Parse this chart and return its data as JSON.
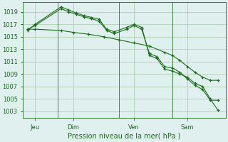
{
  "bg_color": "#dff0ee",
  "grid_color": "#a8c8a8",
  "line_color": "#1a6b1a",
  "title": "Pression niveau de la mer( hPa )",
  "ylim": [
    1002,
    1020.5
  ],
  "yticks": [
    1003,
    1005,
    1007,
    1009,
    1011,
    1013,
    1015,
    1017,
    1019
  ],
  "xlabel_days": [
    "Jeu",
    "Dim",
    "Ven",
    "Sam"
  ],
  "xlabel_xpos": [
    0.5,
    3.0,
    7.0,
    10.5
  ],
  "vline_pos": [
    2.0,
    6.0,
    9.5
  ],
  "series1_x": [
    0.0,
    0.5,
    2.2,
    2.7,
    3.2,
    3.7,
    4.2,
    4.7,
    5.2,
    5.7,
    6.5,
    7.0,
    7.5,
    8.0,
    8.5,
    9.0,
    9.5,
    10.0,
    10.5,
    11.0,
    11.5,
    12.0,
    12.5
  ],
  "series1_y": [
    1016.0,
    1017.0,
    1019.8,
    1019.3,
    1018.8,
    1018.4,
    1018.1,
    1017.8,
    1016.2,
    1015.8,
    1016.5,
    1017.0,
    1016.5,
    1012.0,
    1011.5,
    1009.8,
    1009.5,
    1009.0,
    1008.5,
    1007.5,
    1007.0,
    1005.0,
    1003.2
  ],
  "series2_x": [
    0.0,
    0.5,
    2.2,
    2.7,
    3.2,
    3.7,
    4.2,
    4.7,
    5.2,
    5.7,
    6.5,
    7.0,
    7.5,
    8.0,
    8.5,
    9.0,
    9.5,
    10.0,
    10.5,
    11.0,
    11.5,
    12.0,
    12.5
  ],
  "series2_y": [
    1016.2,
    1016.8,
    1019.5,
    1019.0,
    1018.6,
    1018.2,
    1017.9,
    1017.5,
    1016.0,
    1015.5,
    1016.2,
    1016.8,
    1016.2,
    1012.3,
    1011.8,
    1010.2,
    1010.0,
    1009.3,
    1008.2,
    1007.2,
    1006.5,
    1004.8,
    1004.8
  ],
  "series3_x": [
    0.0,
    0.5,
    2.2,
    3.0,
    4.0,
    5.0,
    6.0,
    7.0,
    8.0,
    9.0,
    9.5,
    10.0,
    10.5,
    11.0,
    11.5,
    12.0,
    12.5
  ],
  "series3_y": [
    1016.2,
    1016.2,
    1016.0,
    1015.7,
    1015.4,
    1015.0,
    1014.5,
    1014.0,
    1013.5,
    1012.5,
    1012.0,
    1011.2,
    1010.2,
    1009.3,
    1008.5,
    1008.0,
    1008.0
  ]
}
